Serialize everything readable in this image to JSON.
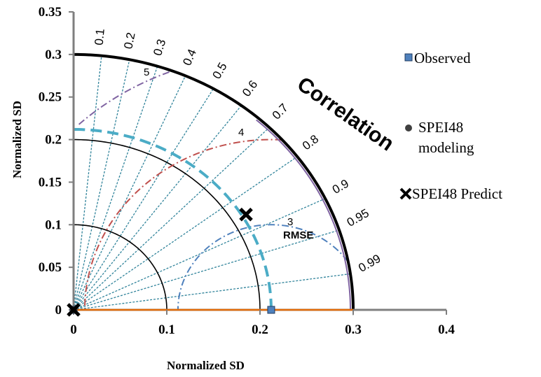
{
  "chart_data": {
    "type": "scatter",
    "subtype": "taylor-diagram",
    "xlabel": "Normalized SD",
    "ylabel": "Normalized SD",
    "xlim": [
      0,
      0.4
    ],
    "ylim": [
      0,
      0.35
    ],
    "x_ticks": [
      "0",
      "0.1",
      "0.2",
      "0.3",
      "0.4"
    ],
    "y_ticks": [
      "0",
      "0.05",
      "0.1",
      "0.15",
      "0.2",
      "0.25",
      "0.3",
      "0.35"
    ],
    "correlation_title": "Correlation",
    "rmse_title": "RMSE",
    "correlation_ticks": [
      "0.1",
      "0.2",
      "0.3",
      "0.4",
      "0.5",
      "0.6",
      "0.7",
      "0.8",
      "0.9",
      "0.95",
      "0.99"
    ],
    "sd_arcs": [
      0.1,
      0.2,
      0.3
    ],
    "rmse_contours": [
      {
        "label": "3",
        "value": 0.1,
        "color": "#4f81bd"
      },
      {
        "label": "4",
        "value": 0.2,
        "color": "#c0504d"
      },
      {
        "label": "5",
        "value": 0.3,
        "color": "#8064a2"
      }
    ],
    "series": [
      {
        "name": "Observed",
        "points": [
          {
            "x": 0.212,
            "y": 0.0
          },
          {
            "x": 0.0,
            "y": 0.0
          }
        ],
        "marker": "square",
        "color": "#4f81bd"
      },
      {
        "name": "SPEI48 modeling",
        "points": [
          {
            "x": 0.0,
            "y": 0.0
          }
        ],
        "marker": "circle",
        "color": "#404040"
      },
      {
        "name": "SPEI48 Predict",
        "points": [
          {
            "x": 0.185,
            "y": 0.112
          },
          {
            "x": 0.0,
            "y": 0.0
          }
        ],
        "marker": "x",
        "color": "#000000"
      }
    ],
    "legend_labels": {
      "observed": "Observed",
      "modeling_line1": "SPEI48",
      "modeling_line2": "modeling",
      "predict": "SPEI48 Predict"
    },
    "legend_position": "right",
    "grid": false
  }
}
